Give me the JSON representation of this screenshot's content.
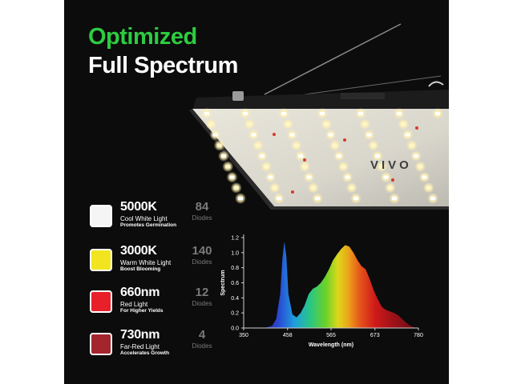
{
  "headline": {
    "line1": "Optimized",
    "line2": "Full Spectrum",
    "line1_color": "#2ecc40",
    "line2_color": "#ffffff"
  },
  "fixture": {
    "brand_mark": "VIVO"
  },
  "legend": [
    {
      "title": "5000K",
      "subtitle": "Cool White Light",
      "note": "Promotes Germination",
      "count": "84",
      "unit": "Diodes",
      "color": "#f5f5f5"
    },
    {
      "title": "3000K",
      "subtitle": "Warm White Light",
      "note": "Boost Blooming",
      "count": "140",
      "unit": "Diodes",
      "color": "#f2e51f"
    },
    {
      "title": "660nm",
      "subtitle": "Red Light",
      "note": "For Higher Yields",
      "count": "12",
      "unit": "Diodes",
      "color": "#e8202a"
    },
    {
      "title": "730nm",
      "subtitle": "Far-Red Light",
      "note": "Accelerates Growth",
      "count": "4",
      "unit": "Diodes",
      "color": "#a3262e"
    }
  ],
  "chart_data": {
    "type": "area",
    "title": "",
    "xlabel": "Wavelength (nm)",
    "ylabel": "Spectrum",
    "xlim": [
      350,
      780
    ],
    "ylim": [
      0,
      1.2
    ],
    "x_ticks": [
      "350",
      "458",
      "565",
      "673",
      "780"
    ],
    "y_ticks": [
      "0.0",
      "0.2",
      "0.4",
      "0.6",
      "0.8",
      "1.0",
      "1.2"
    ],
    "grid": false,
    "fill": "visible-spectrum-gradient",
    "x": [
      400,
      420,
      430,
      440,
      445,
      450,
      455,
      460,
      470,
      480,
      490,
      500,
      510,
      520,
      530,
      540,
      550,
      560,
      570,
      580,
      590,
      600,
      610,
      620,
      630,
      640,
      650,
      660,
      670,
      680,
      690,
      700,
      710,
      720,
      730,
      740,
      750,
      760,
      770,
      780
    ],
    "y": [
      0.0,
      0.03,
      0.12,
      0.45,
      0.9,
      1.15,
      0.95,
      0.45,
      0.18,
      0.14,
      0.2,
      0.3,
      0.45,
      0.52,
      0.55,
      0.6,
      0.68,
      0.78,
      0.9,
      0.98,
      1.05,
      1.1,
      1.08,
      1.0,
      0.9,
      0.82,
      0.78,
      0.65,
      0.5,
      0.38,
      0.28,
      0.24,
      0.22,
      0.2,
      0.17,
      0.12,
      0.07,
      0.03,
      0.01,
      0.0
    ]
  }
}
